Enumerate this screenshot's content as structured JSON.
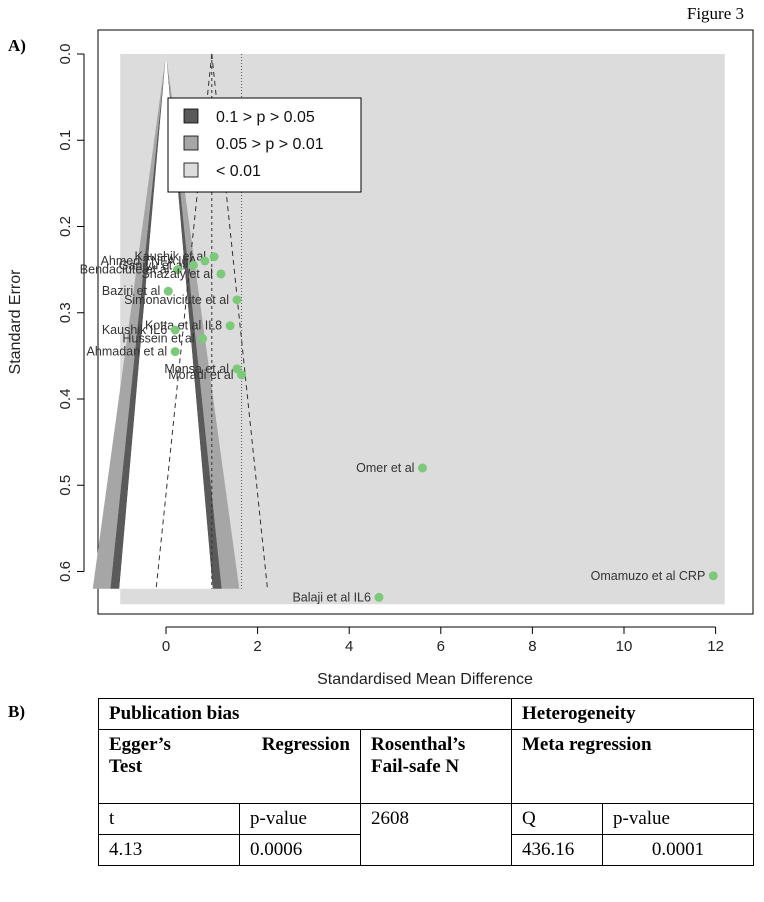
{
  "figure_label": "Figure 3",
  "panel_a_label": "A)",
  "panel_b_label": "B)",
  "chart_data": {
    "type": "scatter",
    "subtype": "contour-enhanced funnel plot",
    "xlabel": "Standardised Mean Difference",
    "ylabel": "Standard Error",
    "xlim": [
      -1.5,
      12.6
    ],
    "ylim": [
      0.0,
      0.65
    ],
    "y_reversed": true,
    "xticks": [
      0,
      2,
      4,
      6,
      8,
      10,
      12
    ],
    "yticks": [
      0.0,
      0.1,
      0.2,
      0.3,
      0.4,
      0.5,
      0.6
    ],
    "xtick_labels": [
      "0",
      "2",
      "4",
      "6",
      "8",
      "10",
      "12"
    ],
    "ytick_labels": [
      "0.0",
      "0.1",
      "0.2",
      "0.3",
      "0.4",
      "0.5",
      "0.6"
    ],
    "pooled_estimate": 1.0,
    "fixed_estimate": 1.65,
    "funnel_se_max": 0.62,
    "legend": {
      "position": "top-left",
      "entries": [
        {
          "label": "0.1 > p > 0.05",
          "color": "#5a5a5a"
        },
        {
          "label": "0.05 > p > 0.01",
          "color": "#a6a6a6"
        },
        {
          "label": "< 0.01",
          "color": "#dcdcdc"
        }
      ]
    },
    "points_color": "#7cc97a",
    "points": [
      {
        "x": 1.05,
        "y": 0.235,
        "label": "Kaushik et al"
      },
      {
        "x": 0.85,
        "y": 0.24,
        "label": "Ahmed TNFA IgA"
      },
      {
        "x": 0.6,
        "y": 0.245,
        "label": "Ganiyu et al"
      },
      {
        "x": 0.25,
        "y": 0.25,
        "label": "Bendaciute et al"
      },
      {
        "x": 1.2,
        "y": 0.255,
        "label": "Shazaly et al"
      },
      {
        "x": 0.05,
        "y": 0.275,
        "label": "Baziri et al"
      },
      {
        "x": 1.55,
        "y": 0.285,
        "label": "Simonaviciute et al"
      },
      {
        "x": 1.4,
        "y": 0.315,
        "label": "Kotta et al IL8"
      },
      {
        "x": 0.2,
        "y": 0.32,
        "label": "Kaushik IL6"
      },
      {
        "x": 0.8,
        "y": 0.33,
        "label": "Hussein et al"
      },
      {
        "x": 0.2,
        "y": 0.345,
        "label": "Ahmadan et al"
      },
      {
        "x": 1.55,
        "y": 0.365,
        "label": "Monsa et al"
      },
      {
        "x": 1.65,
        "y": 0.372,
        "label": "Moradi et al"
      },
      {
        "x": 5.6,
        "y": 0.48,
        "label": "Omer et al"
      },
      {
        "x": 11.95,
        "y": 0.605,
        "label": "Omamuzo  et al CRP"
      },
      {
        "x": 4.65,
        "y": 0.63,
        "label": "Balaji et al IL6"
      }
    ]
  },
  "table": {
    "publication_bias": "Publication bias",
    "heterogeneity": "Heterogeneity",
    "egger_word1": "Egger’s",
    "egger_word2": "Regression",
    "egger_word3": "Test",
    "rosenthal": "Rosenthal’s Fail-safe N",
    "meta_regression": "Meta regression",
    "t_label": "t",
    "p_label_1": "p-value",
    "rosenthal_value": "2608",
    "q_label": "Q",
    "p_label_2": "p-value",
    "t_value": "4.13",
    "p_value_1": "0.0006",
    "q_value": "436.16",
    "p_value_2": "0.0001"
  }
}
